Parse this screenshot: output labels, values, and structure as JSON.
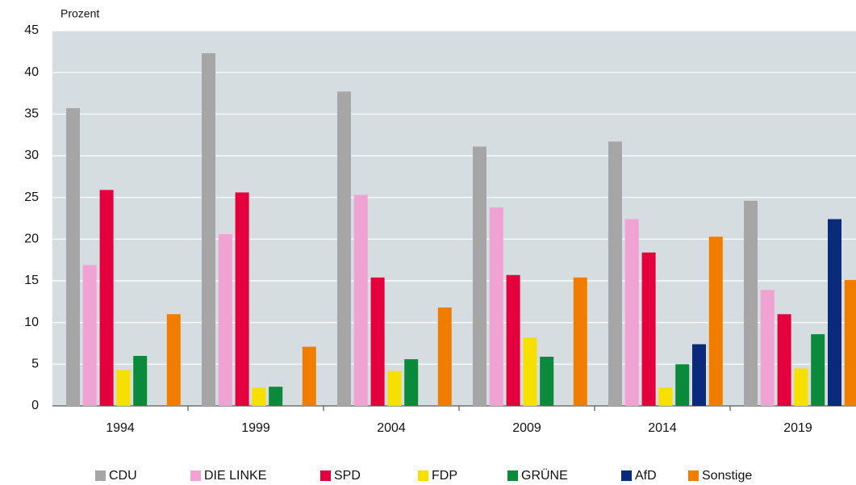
{
  "chart_data": {
    "type": "bar",
    "y_label": "Prozent",
    "categories": [
      "1994",
      "1999",
      "2004",
      "2009",
      "2014",
      "2019"
    ],
    "series": [
      {
        "name": "CDU",
        "color": "#a6a6a6",
        "values": [
          35.7,
          42.3,
          37.7,
          31.1,
          31.7,
          24.6
        ]
      },
      {
        "name": "DIE LINKE",
        "color": "#f0a3d3",
        "values": [
          16.9,
          20.6,
          25.3,
          23.8,
          22.4,
          13.9
        ]
      },
      {
        "name": "SPD",
        "color": "#e3003d",
        "values": [
          25.9,
          25.6,
          15.4,
          15.7,
          18.4,
          11.0
        ]
      },
      {
        "name": "FDP",
        "color": "#f7e000",
        "values": [
          4.3,
          2.2,
          4.2,
          8.2,
          2.2,
          4.5
        ]
      },
      {
        "name": "GRÜNE",
        "color": "#0b8a3b",
        "values": [
          6.0,
          2.3,
          5.6,
          5.9,
          5.0,
          8.6
        ]
      },
      {
        "name": "AfD",
        "color": "#0a2a7c",
        "values": [
          null,
          null,
          null,
          null,
          7.4,
          22.4
        ]
      },
      {
        "name": "Sonstige",
        "color": "#f07d00",
        "values": [
          11.0,
          7.1,
          11.8,
          15.4,
          20.3,
          15.1
        ]
      }
    ],
    "ylim": [
      0,
      45
    ],
    "yticks": [
      0,
      5,
      10,
      15,
      20,
      25,
      30,
      35,
      40,
      45
    ],
    "grid": true,
    "legend": "bottom"
  }
}
